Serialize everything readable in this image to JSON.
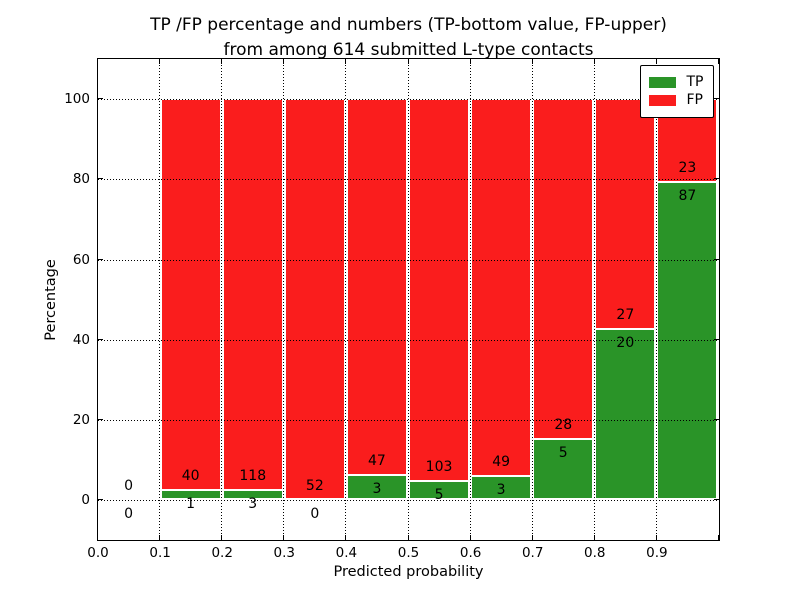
{
  "title": {
    "line1": "TP /FP percentage and numbers (TP-bottom value, FP-upper)",
    "line2": "from among 614 submitted L-type contacts"
  },
  "axes": {
    "xlabel": "Predicted probability",
    "ylabel": "Percentage",
    "x_tick_labels": [
      "0.0",
      "0.1",
      "0.2",
      "0.3",
      "0.4",
      "0.5",
      "0.6",
      "0.7",
      "0.8",
      "0.9"
    ],
    "y_tick_labels": [
      "0",
      "20",
      "40",
      "60",
      "80",
      "100"
    ],
    "y_tick_values": [
      0,
      20,
      40,
      60,
      80,
      100
    ]
  },
  "legend": {
    "items": [
      {
        "label": "TP",
        "color": "#2a9428"
      },
      {
        "label": "FP",
        "color": "#fa1d1d"
      }
    ]
  },
  "chart_data": {
    "type": "bar",
    "stacked": true,
    "normalized_to": 100,
    "title": "TP /FP percentage and numbers (TP-bottom value, FP-upper) from among 614 submitted L-type contacts",
    "xlabel": "Predicted probability",
    "ylabel": "Percentage",
    "xlim": [
      0.0,
      1.0
    ],
    "ylim": [
      -10,
      110
    ],
    "grid": "dotted black, horizontal lines over bars, vertical lines visible in bar gaps",
    "legend_position": "upper right",
    "bin_edges": [
      0.0,
      0.1,
      0.2,
      0.3,
      0.4,
      0.5,
      0.6,
      0.7,
      0.8,
      0.9,
      1.0
    ],
    "categories": [
      "0.0-0.1",
      "0.1-0.2",
      "0.2-0.3",
      "0.3-0.4",
      "0.4-0.5",
      "0.5-0.6",
      "0.6-0.7",
      "0.7-0.8",
      "0.8-0.9",
      "0.9-1.0"
    ],
    "series": [
      {
        "name": "TP",
        "color": "#2a9428",
        "counts": [
          0,
          1,
          3,
          0,
          3,
          5,
          3,
          5,
          20,
          87
        ],
        "percent": [
          0,
          2.4,
          2.5,
          0,
          6.0,
          4.6,
          5.8,
          15.2,
          42.6,
          79.1
        ]
      },
      {
        "name": "FP",
        "color": "#fa1d1d",
        "counts": [
          0,
          40,
          118,
          52,
          47,
          103,
          49,
          28,
          27,
          23
        ],
        "percent": [
          0,
          97.6,
          97.5,
          100,
          94.0,
          95.4,
          94.2,
          84.8,
          57.4,
          20.9
        ]
      }
    ],
    "total_contacts": 614
  }
}
